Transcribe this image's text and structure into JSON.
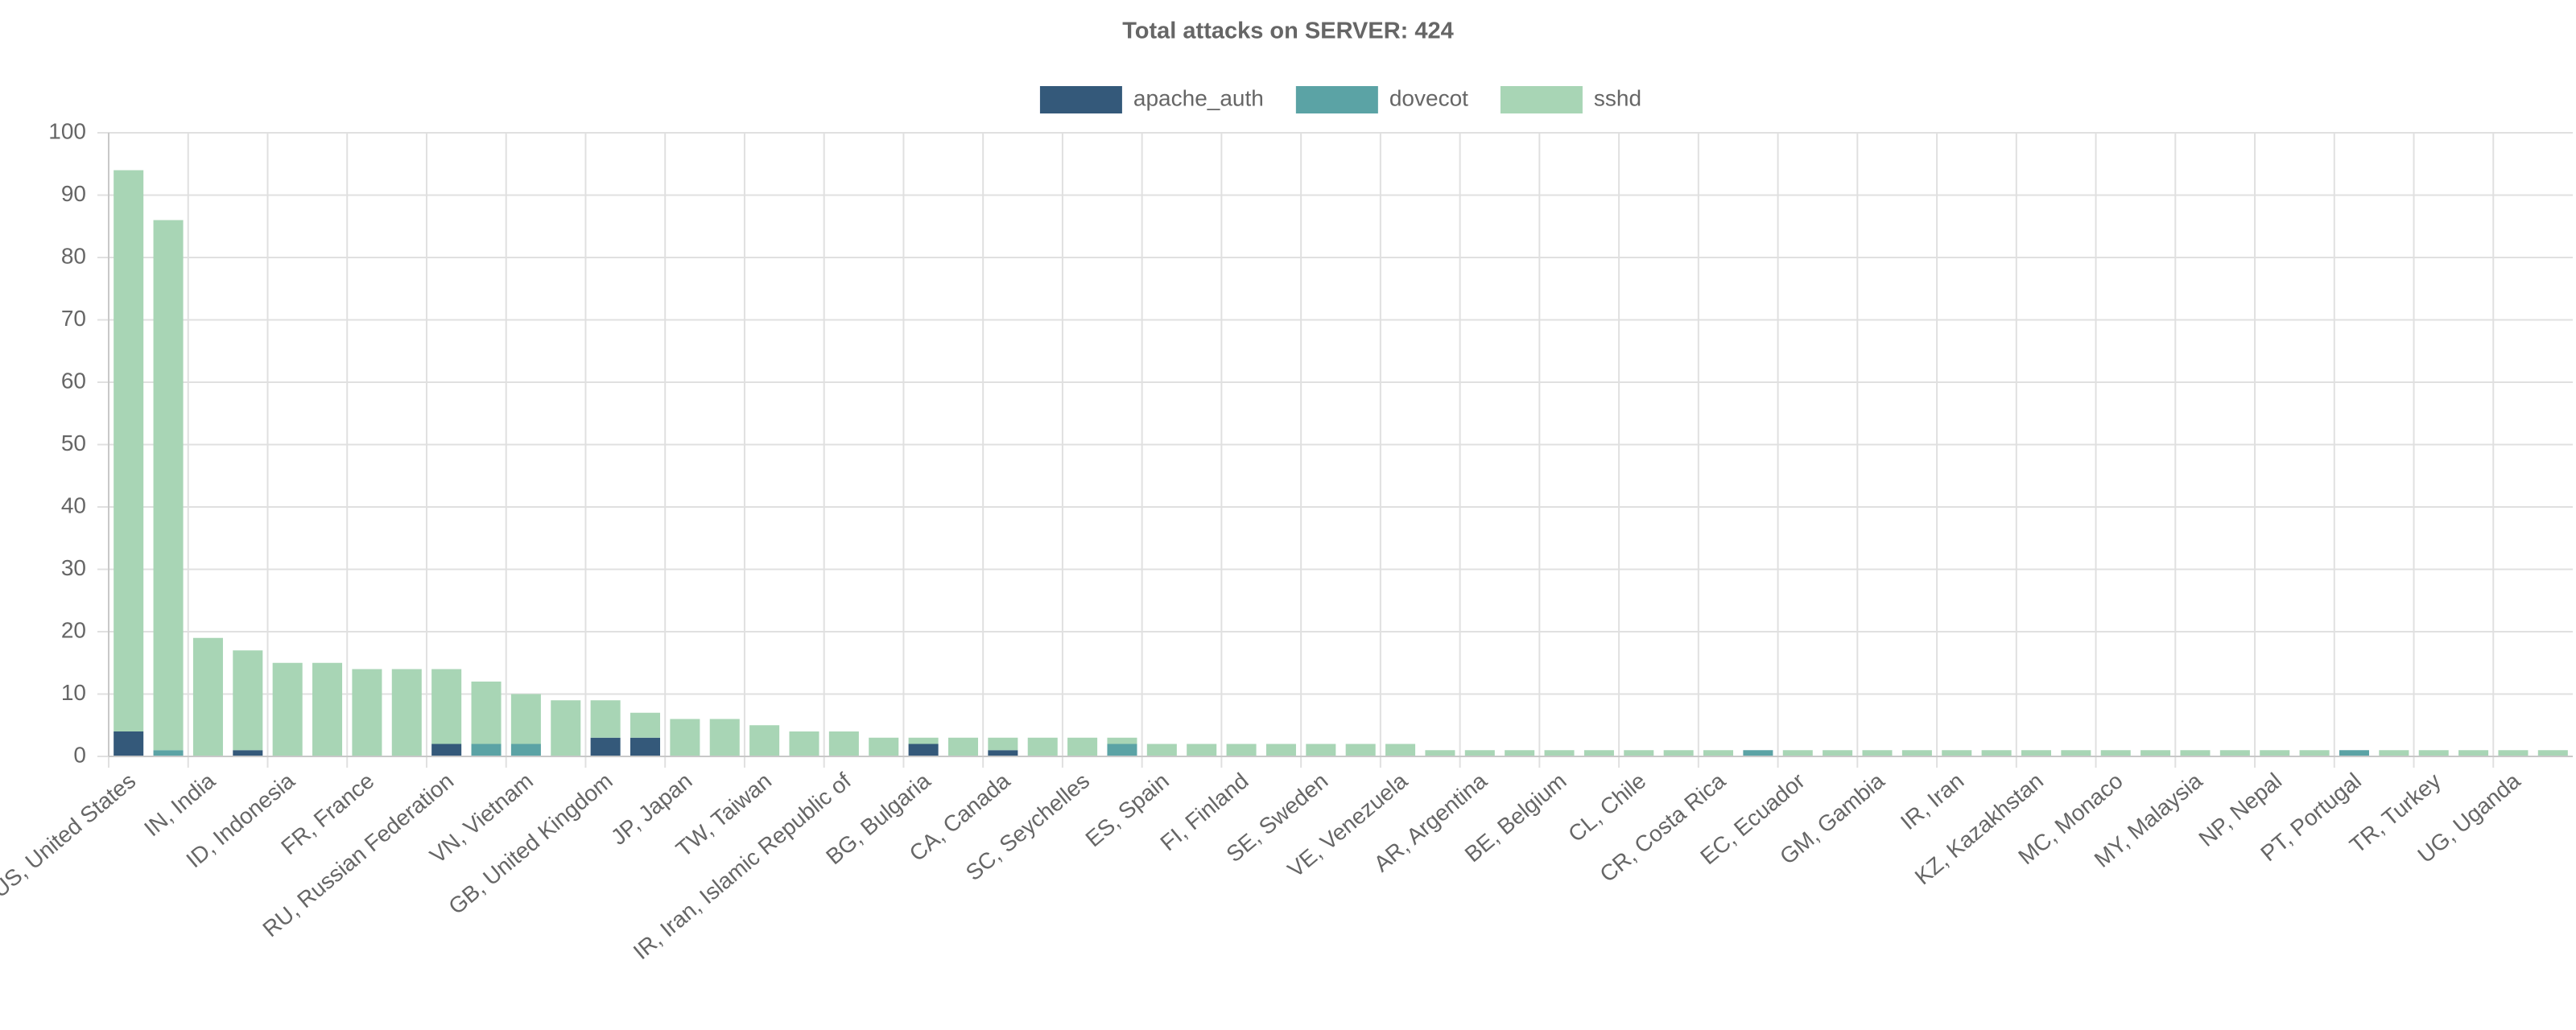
{
  "chart_data": {
    "type": "stacked_bar",
    "title": "Total attacks on SERVER: 424",
    "categories": [
      "US, United States",
      null,
      "IN, India",
      null,
      "ID, Indonesia",
      null,
      "FR, France",
      null,
      "RU, Russian Federation",
      null,
      "VN, Vietnam",
      null,
      "GB, United Kingdom",
      null,
      "JP, Japan",
      null,
      "TW, Taiwan",
      null,
      "IR, Iran, Islamic Republic of",
      null,
      "BG, Bulgaria",
      null,
      "CA, Canada",
      null,
      "SC, Seychelles",
      null,
      "ES, Spain",
      null,
      "FI, Finland",
      null,
      "SE, Sweden",
      null,
      "VE, Venezuela",
      null,
      "AR, Argentina",
      null,
      "BE, Belgium",
      null,
      "CL, Chile",
      null,
      "CR, Costa Rica",
      null,
      "EC, Ecuador",
      null,
      "GM, Gambia",
      null,
      "IR, Iran",
      null,
      "KZ, Kazakhstan",
      null,
      "MC, Monaco",
      null,
      "MY, Malaysia",
      null,
      "NP, Nepal",
      null,
      "PT, Portugal",
      null,
      "TR, Turkey",
      null,
      "UG, Uganda",
      null
    ],
    "series": [
      {
        "name": "apache_auth",
        "color": "#34597a",
        "values": [
          4,
          0,
          0,
          1,
          0,
          0,
          0,
          0,
          2,
          0,
          0,
          0,
          3,
          3,
          0,
          0,
          0,
          0,
          0,
          0,
          2,
          0,
          1,
          0,
          0,
          0,
          0,
          0,
          0,
          0,
          0,
          0,
          0,
          0,
          0,
          0,
          0,
          0,
          0,
          0,
          0,
          0,
          0,
          0,
          0,
          0,
          0,
          0,
          0,
          0,
          0,
          0,
          0,
          0,
          0,
          0,
          0,
          0,
          0,
          0,
          0,
          0
        ]
      },
      {
        "name": "dovecot",
        "color": "#5ba3a5",
        "values": [
          0,
          1,
          0,
          0,
          0,
          0,
          0,
          0,
          0,
          2,
          2,
          0,
          0,
          0,
          0,
          0,
          0,
          0,
          0,
          0,
          0,
          0,
          0,
          0,
          0,
          2,
          0,
          0,
          0,
          0,
          0,
          0,
          0,
          0,
          0,
          0,
          0,
          0,
          0,
          0,
          0,
          1,
          0,
          0,
          0,
          0,
          0,
          0,
          0,
          0,
          0,
          0,
          0,
          0,
          0,
          0,
          1,
          0,
          0,
          0,
          0,
          0
        ]
      },
      {
        "name": "sshd",
        "color": "#a8d5b5",
        "values": [
          90,
          85,
          19,
          16,
          15,
          15,
          14,
          14,
          12,
          10,
          8,
          9,
          6,
          4,
          6,
          6,
          5,
          4,
          4,
          3,
          1,
          3,
          2,
          3,
          3,
          1,
          2,
          2,
          2,
          2,
          2,
          2,
          2,
          1,
          1,
          1,
          1,
          1,
          1,
          1,
          1,
          0,
          1,
          1,
          1,
          1,
          1,
          1,
          1,
          1,
          1,
          1,
          1,
          1,
          1,
          1,
          0,
          1,
          1,
          1,
          1,
          1
        ]
      }
    ],
    "ylim": [
      0,
      100
    ],
    "yticks": [
      0,
      10,
      20,
      30,
      40,
      50,
      60,
      70,
      80,
      90,
      100
    ],
    "grid": true,
    "legend": "top"
  }
}
